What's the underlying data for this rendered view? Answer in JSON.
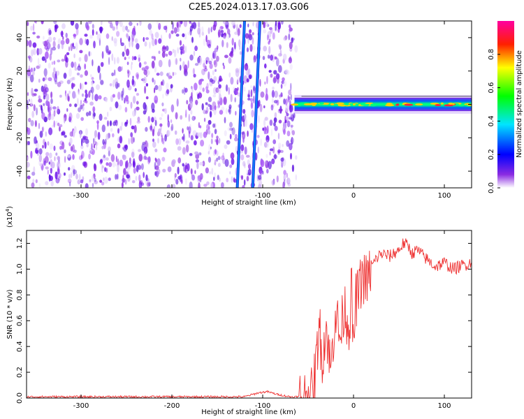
{
  "title": "C2E5.2024.013.17.03.G06",
  "chart_data": [
    {
      "type": "heatmap",
      "xlabel": "Height of straight line (km)",
      "ylabel": "Frequency (Hz)",
      "xlim": [
        -360,
        130
      ],
      "ylim": [
        -50,
        50
      ],
      "xticks": [
        -300,
        -200,
        -100,
        0,
        100
      ],
      "yticks": [
        -40,
        -20,
        0,
        20,
        40
      ],
      "colorbar": {
        "label": "Normalized spectral amplitude",
        "ticks": [
          "0.0",
          "0.2",
          "0.4",
          "0.6",
          "0.8"
        ],
        "range": [
          0,
          1
        ]
      },
      "features": {
        "noise_region_x": [
          -360,
          -63
        ],
        "line1": {
          "x_at_ymin": -128,
          "x_at_ymax": -120
        },
        "line2": {
          "x_at_ymin": -111,
          "x_at_ymax": -103
        },
        "signal_band": {
          "x": [
            -65,
            130
          ],
          "center_freq": 0,
          "half_width": 4
        }
      },
      "colors": {
        "noise": "#7a1cf0",
        "line": "#1e3de8",
        "band_peak": "#ff2040"
      }
    },
    {
      "type": "line",
      "xlabel": "Height of straight line (km)",
      "ylabel": "SNR (10 * v/v)",
      "yscale_label": "(x10",
      "yscale_exponent": "4",
      "yscale_close": ")",
      "xlim": [
        -360,
        130
      ],
      "ylim": [
        0,
        1.3
      ],
      "xticks": [
        -300,
        -200,
        -100,
        0,
        100
      ],
      "yticks": [
        "0.0",
        "0.2",
        "0.4",
        "0.6",
        "0.8",
        "1.0",
        "1.2"
      ],
      "series": [
        {
          "color": "#ee3333",
          "x": [
            -360,
            -300,
            -200,
            -120,
            -105,
            -95,
            -85,
            -70,
            -55,
            -45,
            -40,
            -38,
            -35,
            -30,
            -25,
            -20,
            -15,
            -10,
            -5,
            -2,
            0,
            2,
            5,
            10,
            15,
            20,
            25,
            30,
            40,
            50,
            55,
            60,
            65,
            70,
            80,
            90,
            100,
            110,
            120,
            130
          ],
          "values": [
            0.01,
            0.01,
            0.01,
            0.01,
            0.04,
            0.05,
            0.03,
            0.01,
            0.01,
            0.02,
            0.35,
            0.62,
            0.3,
            0.55,
            0.2,
            0.7,
            0.45,
            0.72,
            0.55,
            0.85,
            0.3,
            0.75,
            0.8,
            0.95,
            0.9,
            1.02,
            1.08,
            1.12,
            1.1,
            1.15,
            1.2,
            1.18,
            1.12,
            1.15,
            1.08,
            1.02,
            1.05,
            1.0,
            1.03,
            1.05
          ]
        }
      ]
    }
  ]
}
